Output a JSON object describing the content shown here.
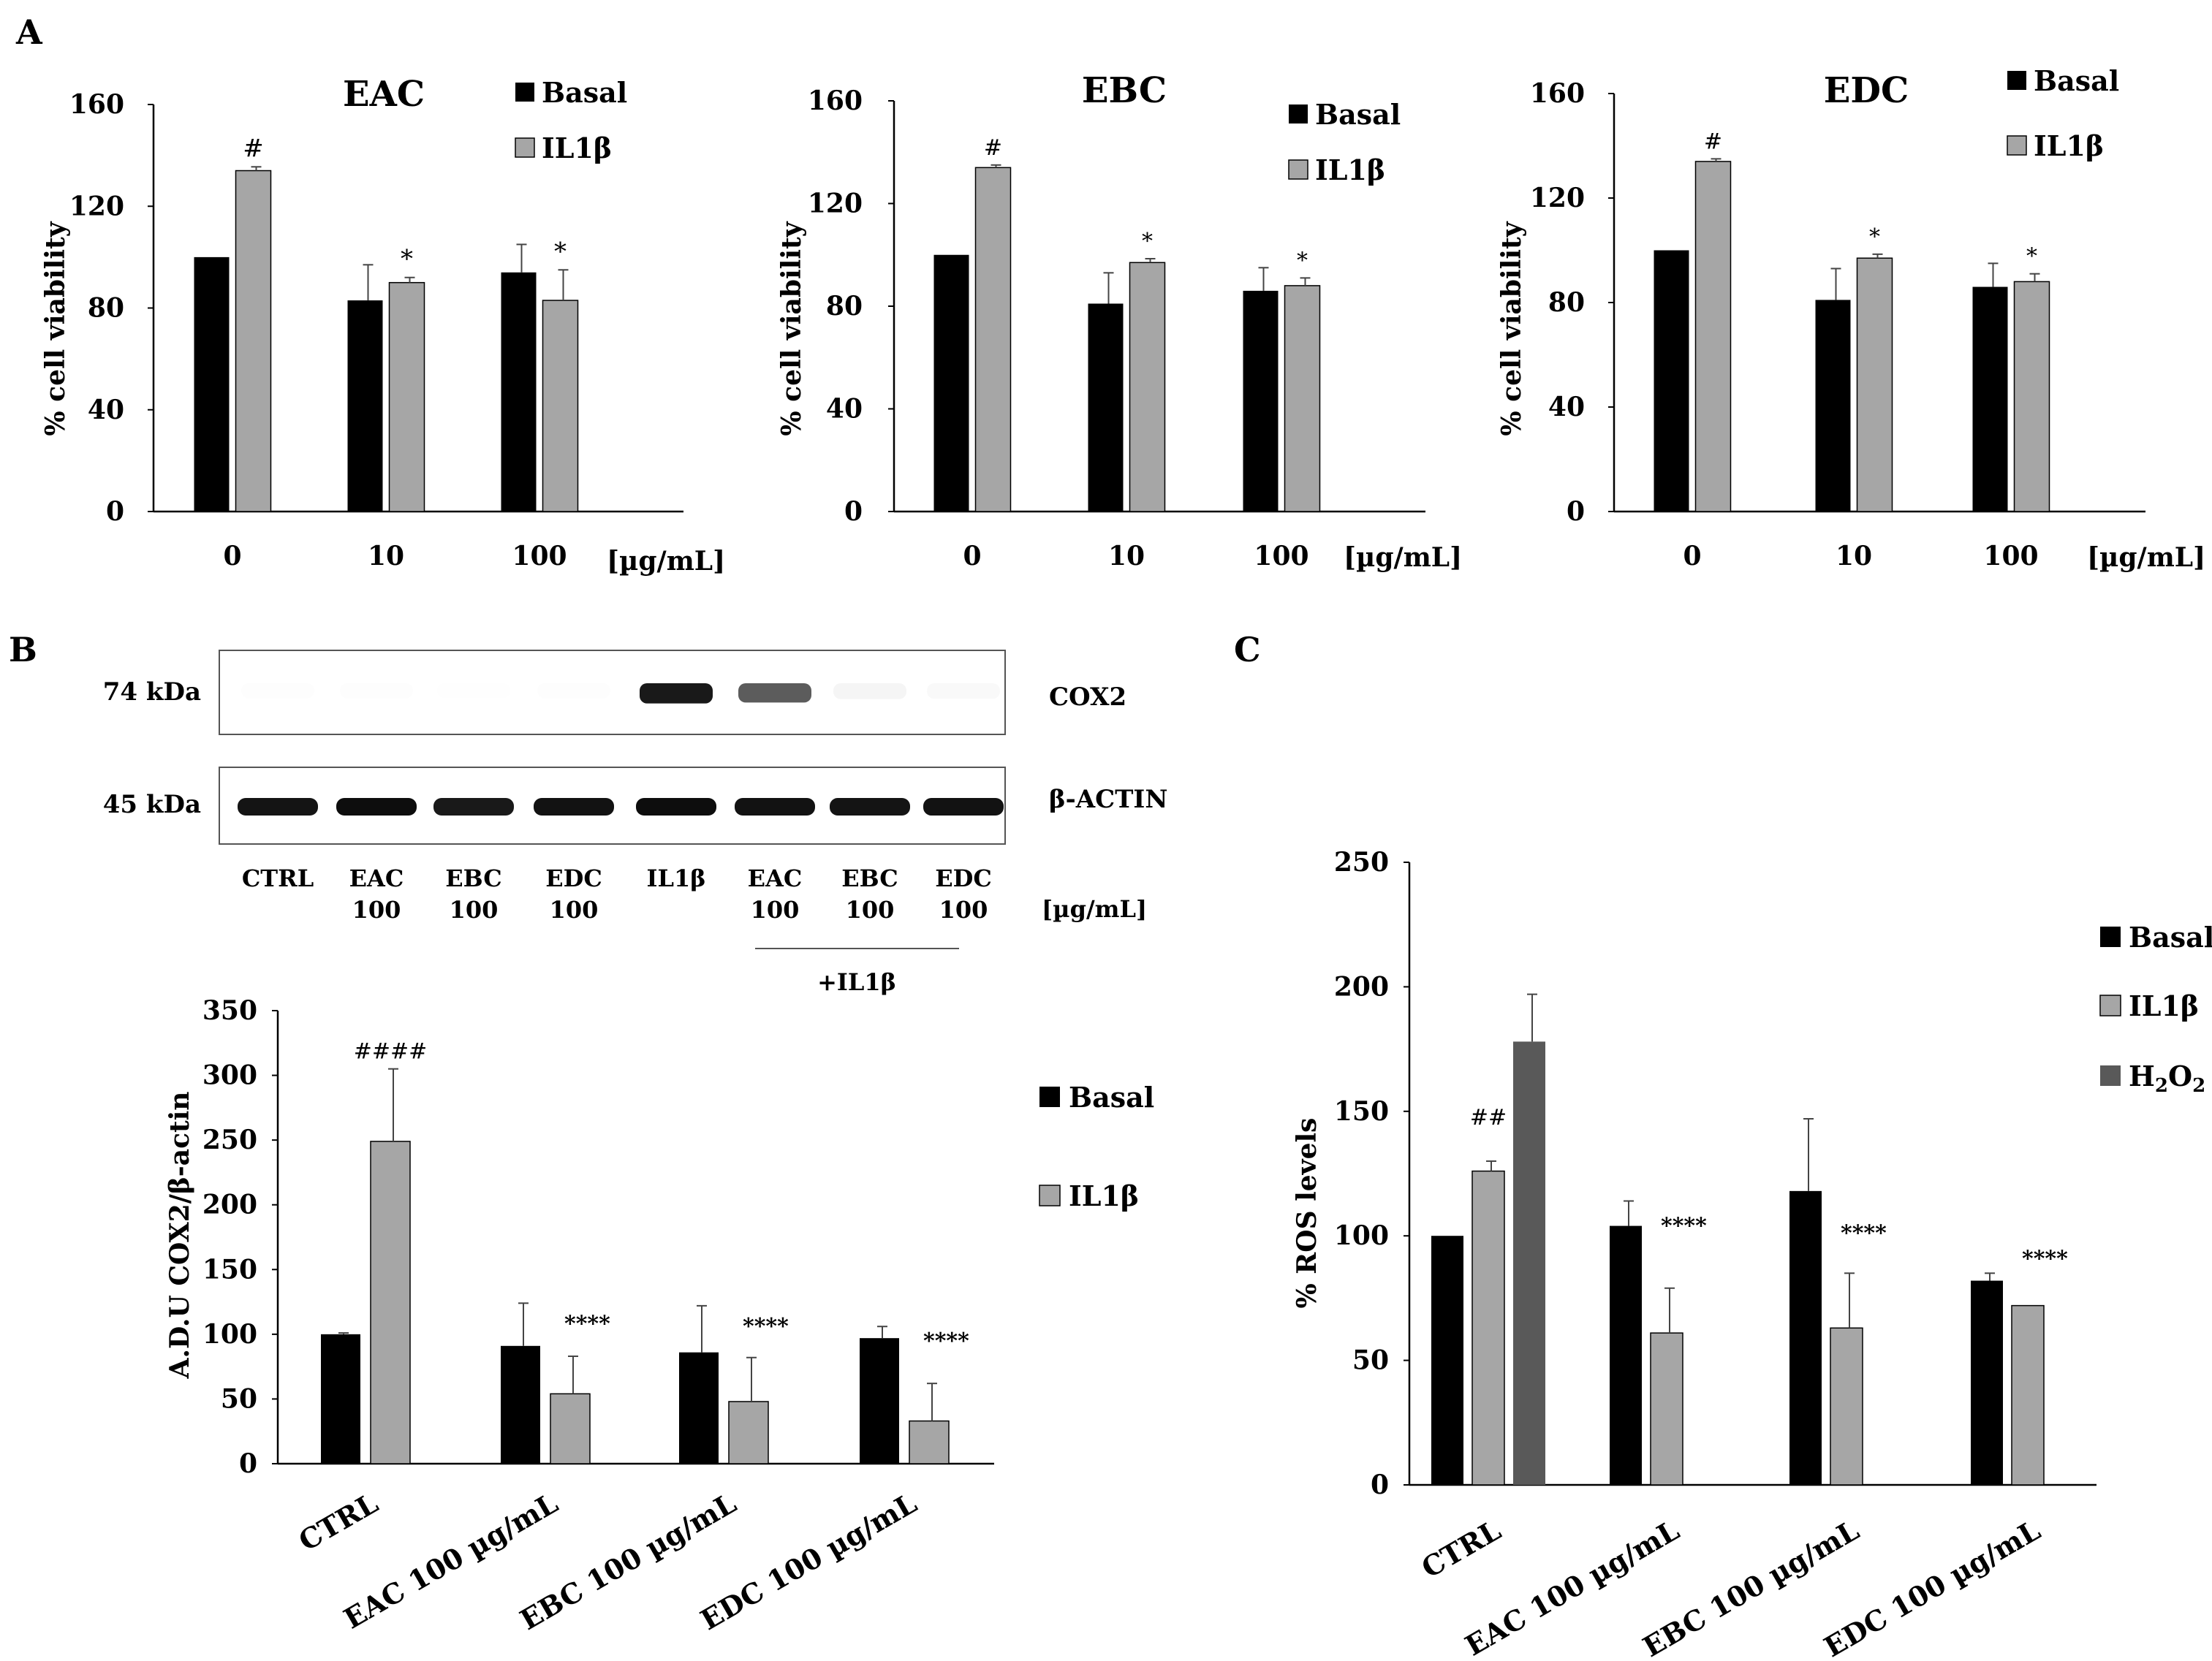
{
  "panels": {
    "a": "A",
    "b": "B",
    "c": "C"
  },
  "colors": {
    "basal": "#000000",
    "il1b": "#a6a6a6",
    "h2o2": "#595959",
    "axis": "#000000"
  },
  "legend_labels": {
    "basal": "Basal",
    "il1b": "IL1β",
    "h2o2_main": "H",
    "h2o2_sub1": "2",
    "h2o2_mid": "O",
    "h2o2_sub2": "2"
  },
  "blot": {
    "band_labels": {
      "cox2": "COX2",
      "actin": "β-ACTIN"
    },
    "mw": {
      "cox2": "74 kDa",
      "actin": "45 kDa"
    },
    "lanes": [
      {
        "name": "CTRL",
        "dose": "",
        "cox2_intensity": 0.06,
        "actin_intensity": 0.92
      },
      {
        "name": "EAC",
        "dose": "100",
        "cox2_intensity": 0.08,
        "actin_intensity": 0.95
      },
      {
        "name": "EBC",
        "dose": "100",
        "cox2_intensity": 0.03,
        "actin_intensity": 0.9
      },
      {
        "name": "EDC",
        "dose": "100",
        "cox2_intensity": 0.06,
        "actin_intensity": 0.93
      },
      {
        "name": "IL1β",
        "dose": "",
        "cox2_intensity": 0.95,
        "actin_intensity": 0.95
      },
      {
        "name": "EAC",
        "dose": "100",
        "cox2_intensity": 0.8,
        "actin_intensity": 0.93
      },
      {
        "name": "EBC",
        "dose": "100",
        "cox2_intensity": 0.2,
        "actin_intensity": 0.92
      },
      {
        "name": "EDC",
        "dose": "100",
        "cox2_intensity": 0.15,
        "actin_intensity": 0.93
      }
    ],
    "units": "[µg/mL]",
    "treatment_label": "+IL1β"
  },
  "chart_data": [
    {
      "id": "viability-eac",
      "type": "bar",
      "title": "EAC",
      "ylabel": "% cell viability",
      "xunit": "[µg/mL]",
      "ylim": [
        0,
        160
      ],
      "yticks": [
        0,
        40,
        80,
        120,
        160
      ],
      "categories": [
        "0",
        "10",
        "100"
      ],
      "series": [
        {
          "name": "Basal",
          "values": [
            100,
            83,
            94
          ],
          "errors": [
            0,
            14,
            11
          ]
        },
        {
          "name": "IL1β",
          "values": [
            134,
            90,
            83
          ],
          "errors": [
            1.5,
            2,
            12
          ]
        }
      ],
      "annotations": [
        {
          "category": 0,
          "series": 1,
          "text": "#"
        },
        {
          "category": 1,
          "series": 1,
          "text": "*"
        },
        {
          "category": 2,
          "series": 1,
          "text": "*"
        }
      ]
    },
    {
      "id": "viability-ebc",
      "type": "bar",
      "title": "EBC",
      "ylabel": "% cell viability",
      "xunit": "[µg/mL]",
      "ylim": [
        0,
        160
      ],
      "yticks": [
        0,
        40,
        80,
        120,
        160
      ],
      "categories": [
        "0",
        "10",
        "100"
      ],
      "series": [
        {
          "name": "Basal",
          "values": [
            100,
            81,
            86
          ],
          "errors": [
            0,
            12,
            9
          ]
        },
        {
          "name": "IL1β",
          "values": [
            134,
            97,
            88
          ],
          "errors": [
            1,
            1.5,
            3
          ]
        }
      ],
      "annotations": [
        {
          "category": 0,
          "series": 1,
          "text": "#"
        },
        {
          "category": 1,
          "series": 1,
          "text": "*"
        },
        {
          "category": 2,
          "series": 1,
          "text": "*"
        }
      ]
    },
    {
      "id": "viability-edc",
      "type": "bar",
      "title": "EDC",
      "ylabel": "% cell viability",
      "xunit": "[µg/mL]",
      "ylim": [
        0,
        160
      ],
      "yticks": [
        0,
        40,
        80,
        120,
        160
      ],
      "categories": [
        "0",
        "10",
        "100"
      ],
      "series": [
        {
          "name": "Basal",
          "values": [
            100,
            81,
            86
          ],
          "errors": [
            0,
            12,
            9
          ]
        },
        {
          "name": "IL1β",
          "values": [
            134,
            97,
            88
          ],
          "errors": [
            1,
            1.5,
            3
          ]
        }
      ],
      "annotations": [
        {
          "category": 0,
          "series": 1,
          "text": "#"
        },
        {
          "category": 1,
          "series": 1,
          "text": "*"
        },
        {
          "category": 2,
          "series": 1,
          "text": "*"
        }
      ]
    },
    {
      "id": "cox2-quant",
      "type": "bar",
      "title": "",
      "ylabel": "A.D.U COX2/β-actin",
      "ylim": [
        0,
        350
      ],
      "yticks": [
        0,
        50,
        100,
        150,
        200,
        250,
        300,
        350
      ],
      "categories": [
        "CTRL",
        "EAC 100 µg/mL",
        "EBC 100 µg/mL",
        "EDC 100 µg/mL"
      ],
      "series": [
        {
          "name": "Basal",
          "values": [
            100,
            91,
            86,
            97
          ],
          "errors": [
            1,
            33,
            36,
            9
          ]
        },
        {
          "name": "IL1β",
          "values": [
            249,
            54,
            48,
            33
          ],
          "errors": [
            56,
            29,
            34,
            29
          ]
        }
      ],
      "annotations": [
        {
          "category": 0,
          "series": 1,
          "text": "####"
        },
        {
          "category": 1,
          "series": 1,
          "text": "****"
        },
        {
          "category": 2,
          "series": 1,
          "text": "****"
        },
        {
          "category": 3,
          "series": 1,
          "text": "****"
        }
      ]
    },
    {
      "id": "ros-levels",
      "type": "bar",
      "title": "",
      "ylabel": "% ROS levels",
      "ylim": [
        0,
        250
      ],
      "yticks": [
        0,
        50,
        100,
        150,
        200,
        250
      ],
      "categories": [
        "CTRL",
        "EAC 100 µg/mL",
        "EBC 100 µg/mL",
        "EDC 100 µg/mL"
      ],
      "series": [
        {
          "name": "Basal",
          "values": [
            100,
            104,
            118,
            82
          ],
          "errors": [
            0,
            10,
            29,
            3
          ]
        },
        {
          "name": "IL1β",
          "values": [
            126,
            61,
            63,
            72
          ],
          "errors": [
            4,
            18,
            22,
            0
          ]
        },
        {
          "name": "H2O2",
          "values": [
            178,
            null,
            null,
            null
          ],
          "errors": [
            19,
            null,
            null,
            null
          ]
        }
      ],
      "annotations": [
        {
          "category": 0,
          "series": 1,
          "text": "##"
        },
        {
          "category": 1,
          "series": 1,
          "text": "****"
        },
        {
          "category": 2,
          "series": 1,
          "text": "****"
        },
        {
          "category": 3,
          "series": 1,
          "text": "****"
        }
      ]
    }
  ]
}
